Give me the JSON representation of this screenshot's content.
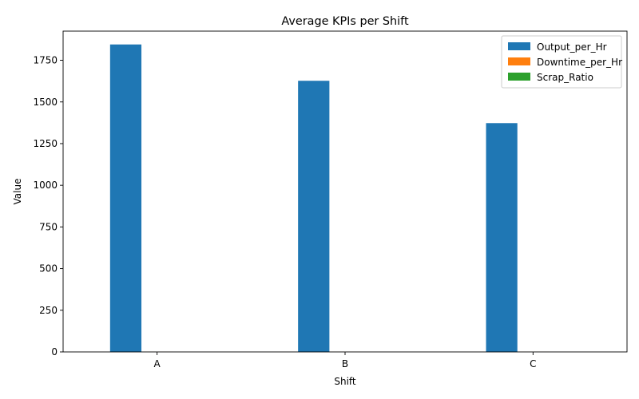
{
  "chart_data": {
    "type": "bar",
    "title": "Average KPIs per Shift",
    "xlabel": "Shift",
    "ylabel": "Value",
    "categories": [
      "A",
      "B",
      "C"
    ],
    "ylim": [
      0,
      1925
    ],
    "yticks": [
      0,
      250,
      500,
      750,
      1000,
      1250,
      1500,
      1750
    ],
    "grid": false,
    "legend_position": "top-right",
    "series": [
      {
        "name": "Output_per_Hr",
        "color": "#1f77b4",
        "values": [
          1845,
          1627,
          1373
        ]
      },
      {
        "name": "Downtime_per_Hr",
        "color": "#ff7f0e",
        "values": [
          0.5,
          0.5,
          0.5
        ]
      },
      {
        "name": "Scrap_Ratio",
        "color": "#2ca02c",
        "values": [
          0.02,
          0.02,
          0.02
        ]
      }
    ]
  }
}
